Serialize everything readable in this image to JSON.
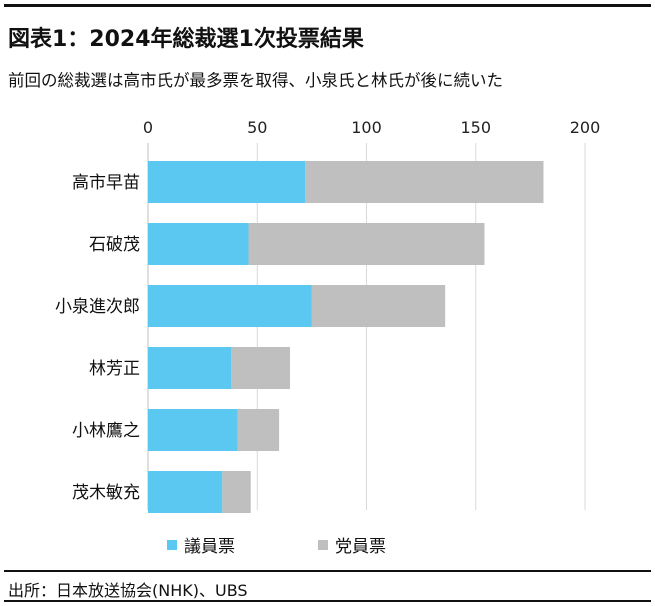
{
  "header": {
    "title": "図表1：2024年総裁選1次投票結果",
    "subtitle": "前回の総裁選は高市氏が最多票を取得、小泉氏と林氏が後に続いた"
  },
  "footer": {
    "source": "出所：日本放送協会(NHK)、UBS"
  },
  "colors": {
    "diet_votes": "#5bc8f2",
    "party_votes": "#bfbfbf",
    "grid": "#d9d9d9"
  },
  "chart_data": {
    "type": "bar",
    "orientation": "horizontal",
    "stacked": true,
    "categories": [
      "高市早苗",
      "石破茂",
      "小泉進次郎",
      "林芳正",
      "小林鷹之",
      "茂木敏充"
    ],
    "series": [
      {
        "name": "議員票",
        "values": [
          72,
          46,
          75,
          38,
          41,
          34
        ]
      },
      {
        "name": "党員票",
        "values": [
          109,
          108,
          61,
          27,
          19,
          13
        ]
      }
    ],
    "xlim": [
      0,
      200
    ],
    "x_ticks": [
      0,
      50,
      100,
      150,
      200
    ],
    "x_axis_position": "top",
    "grid": true,
    "legend": "bottom"
  }
}
